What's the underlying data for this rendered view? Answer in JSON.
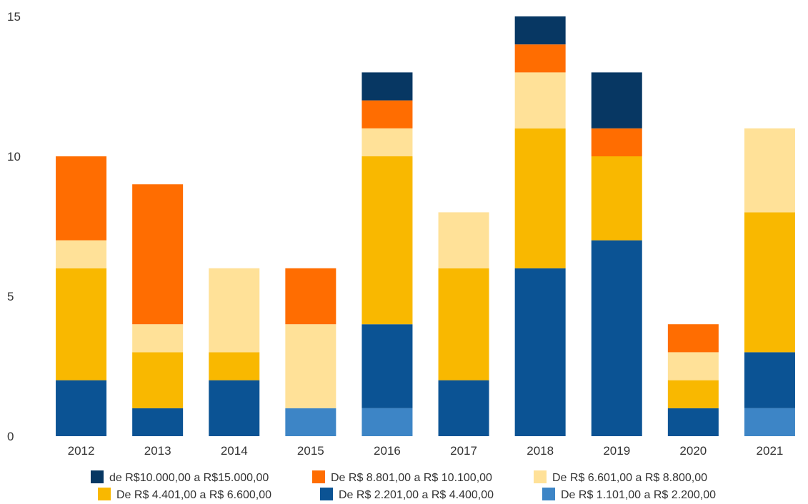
{
  "chart_data": {
    "type": "bar",
    "stacked": true,
    "title": "",
    "xlabel": "",
    "ylabel": "",
    "ylim": [
      0,
      15
    ],
    "yticks": [
      0,
      5,
      10,
      15
    ],
    "grid": false,
    "legend_position": "bottom",
    "categories": [
      "2012",
      "2013",
      "2014",
      "2015",
      "2016",
      "2017",
      "2018",
      "2019",
      "2020",
      "2021"
    ],
    "series": [
      {
        "name": "De R$ 1.101,00 a R$ 2.200,00",
        "color": "#3D85C6",
        "values": [
          0,
          0,
          0,
          1,
          1,
          0,
          0,
          0,
          0,
          1
        ]
      },
      {
        "name": "De R$ 2.201,00 a R$ 4.400,00",
        "color": "#0B5394",
        "values": [
          2,
          1,
          2,
          0,
          3,
          2,
          6,
          7,
          1,
          2
        ]
      },
      {
        "name": "De R$ 4.401,00 a R$ 6.600,00",
        "color": "#F9B800",
        "values": [
          4,
          2,
          1,
          0,
          6,
          4,
          5,
          3,
          1,
          5
        ]
      },
      {
        "name": "De R$ 6.601,00 a R$ 8.800,00",
        "color": "#FFE198",
        "values": [
          1,
          1,
          3,
          3,
          1,
          2,
          2,
          0,
          1,
          3
        ]
      },
      {
        "name": "De R$ 8.801,00 a R$ 10.100,00",
        "color": "#FF6D01",
        "values": [
          3,
          5,
          0,
          2,
          1,
          0,
          1,
          1,
          1,
          0
        ]
      },
      {
        "name": "de R$10.000,00 a R$15.000,00",
        "color": "#073763",
        "values": [
          0,
          0,
          0,
          0,
          1,
          0,
          1,
          2,
          0,
          0
        ]
      }
    ],
    "legend_order": [
      5,
      4,
      3,
      2,
      1,
      0
    ]
  }
}
